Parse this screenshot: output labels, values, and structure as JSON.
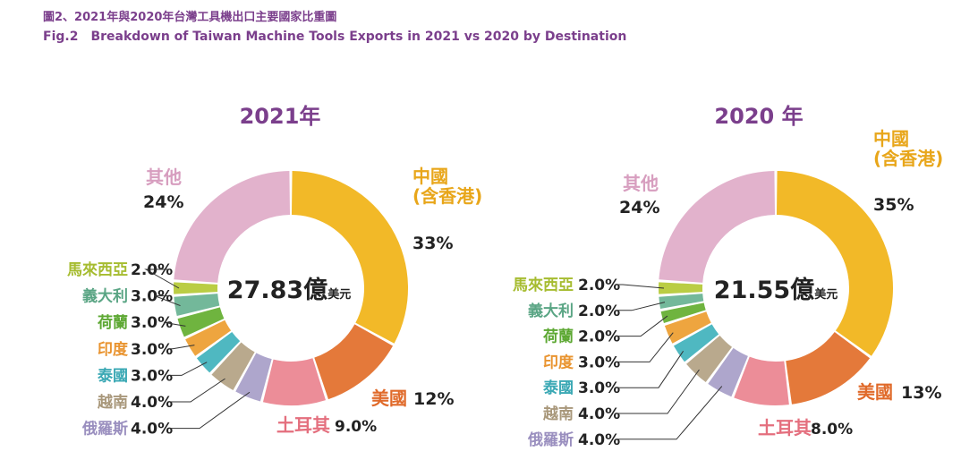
{
  "title_zh": "圖2、2021年與2020年台灣工具機出口主要國家比重圖",
  "title_en": "Fig.2　Breakdown of Taiwan Machine Tools  Exports in 2021 vs 2020 by Destination",
  "colors": {
    "中國(含香港)": "#f2b928",
    "美國": "#e4793a",
    "土耳其": "#ec8d98",
    "俄羅斯": "#aea6cc",
    "越南": "#b9a98d",
    "泰國": "#4fb8c1",
    "印度": "#eea53f",
    "荷蘭": "#6fb43f",
    "義大利": "#73b89a",
    "馬來西亞": "#bacd44",
    "其他": "#e2b2cc"
  },
  "label_colors": {
    "中國(含香港)": "#e8a61a",
    "美國": "#e06a2a",
    "土耳其": "#e46f7e",
    "俄羅斯": "#9a8fbf",
    "越南": "#a8977a",
    "泰國": "#3aa8b4",
    "印度": "#e99430",
    "荷蘭": "#5da833",
    "義大利": "#5aa584",
    "馬來西亞": "#a6bc30",
    "其他": "#d79ebf"
  },
  "chart_data": [
    {
      "type": "pie",
      "title": "2021年",
      "total_value": "27.83",
      "total_unit": "億美元",
      "unit": "%",
      "slices": [
        {
          "label": "中國(含香港)",
          "value": 33,
          "display": "33%"
        },
        {
          "label": "美國",
          "value": 12,
          "display": "12%"
        },
        {
          "label": "土耳其",
          "value": 9,
          "display": "9.0%"
        },
        {
          "label": "俄羅斯",
          "value": 4,
          "display": "4.0%"
        },
        {
          "label": "越南",
          "value": 4,
          "display": "4.0%"
        },
        {
          "label": "泰國",
          "value": 3,
          "display": "3.0%"
        },
        {
          "label": "印度",
          "value": 3,
          "display": "3.0%"
        },
        {
          "label": "荷蘭",
          "value": 3,
          "display": "3.0%"
        },
        {
          "label": "義大利",
          "value": 3,
          "display": "3.0%"
        },
        {
          "label": "馬來西亞",
          "value": 2,
          "display": "2.0%"
        },
        {
          "label": "其他",
          "value": 24,
          "display": "24%"
        }
      ]
    },
    {
      "type": "pie",
      "title": "2020 年",
      "total_value": "21.55",
      "total_unit": "億美元",
      "unit": "%",
      "slices": [
        {
          "label": "中國(含香港)",
          "value": 35,
          "display": "35%"
        },
        {
          "label": "美國",
          "value": 13,
          "display": "13%"
        },
        {
          "label": "土耳其",
          "value": 8,
          "display": "8.0%"
        },
        {
          "label": "俄羅斯",
          "value": 4,
          "display": "4.0%"
        },
        {
          "label": "越南",
          "value": 4,
          "display": "4.0%"
        },
        {
          "label": "泰國",
          "value": 3,
          "display": "3.0%"
        },
        {
          "label": "印度",
          "value": 3,
          "display": "3.0%"
        },
        {
          "label": "荷蘭",
          "value": 2,
          "display": "2.0%"
        },
        {
          "label": "義大利",
          "value": 2,
          "display": "2.0%"
        },
        {
          "label": "馬來西亞",
          "value": 2,
          "display": "2.0%"
        },
        {
          "label": "其他",
          "value": 24,
          "display": "24%"
        }
      ]
    }
  ]
}
